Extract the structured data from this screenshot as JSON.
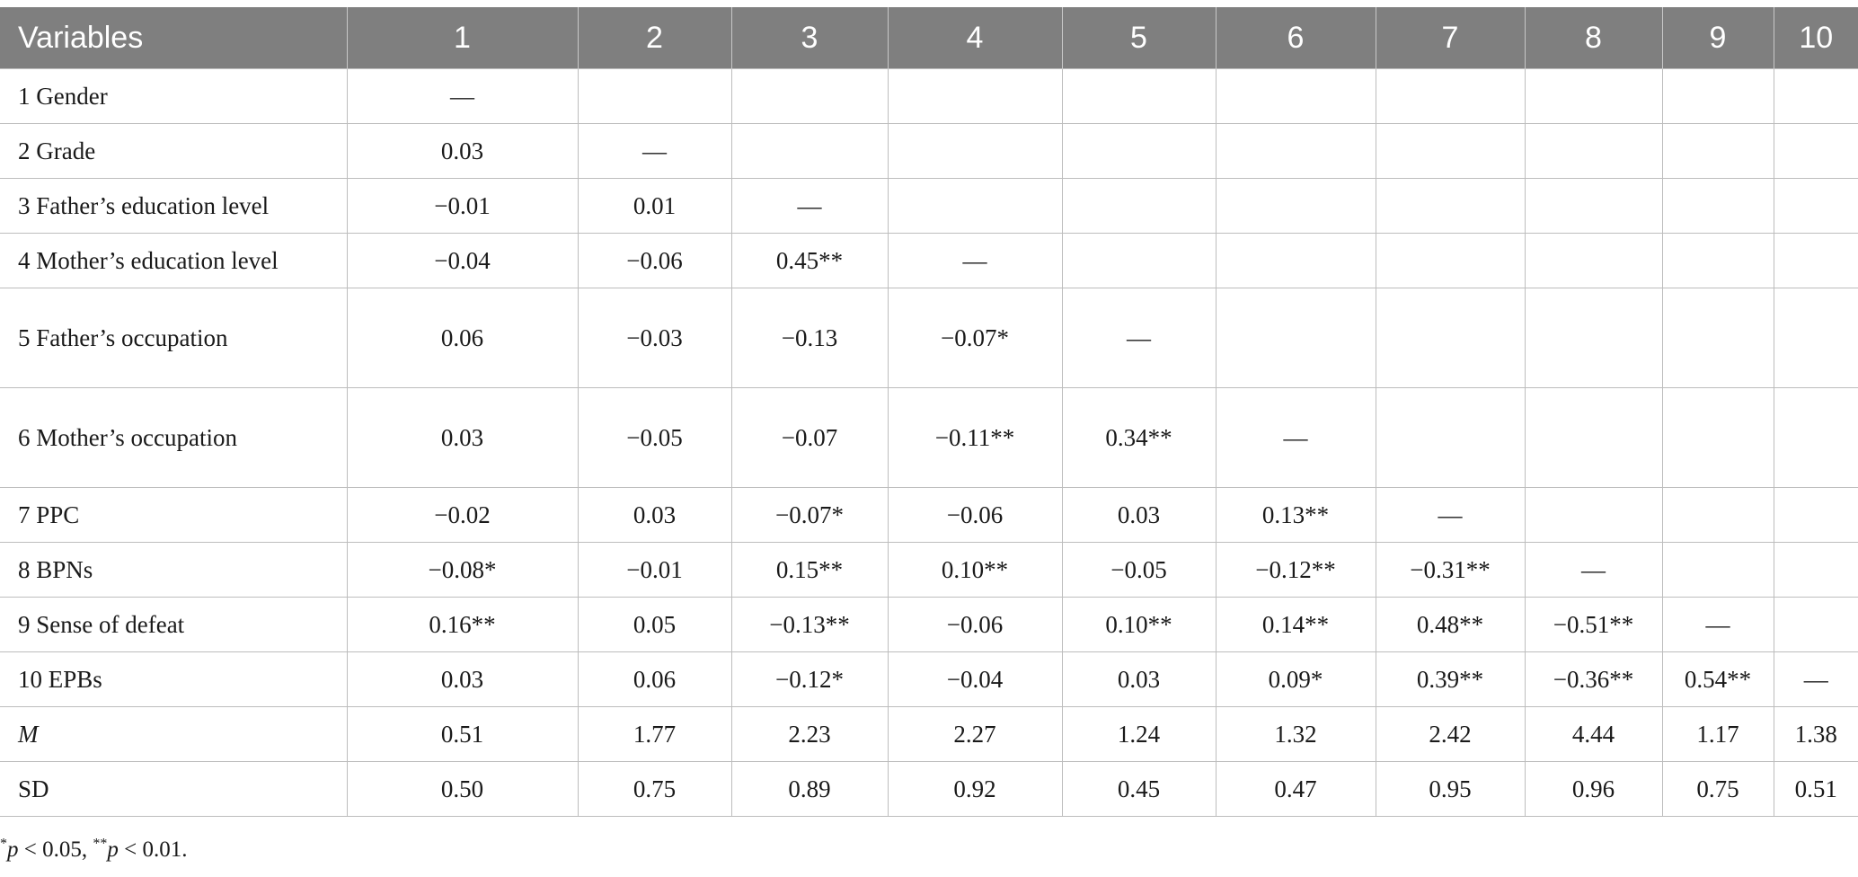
{
  "table": {
    "headers": [
      "Variables",
      "1",
      "2",
      "3",
      "4",
      "5",
      "6",
      "7",
      "8",
      "9",
      "10"
    ],
    "rows": [
      {
        "label": "1 Gender",
        "cells": [
          "—",
          "",
          "",
          "",
          "",
          "",
          "",
          "",
          "",
          ""
        ]
      },
      {
        "label": "2 Grade",
        "cells": [
          "0.03",
          "—",
          "",
          "",
          "",
          "",
          "",
          "",
          "",
          ""
        ]
      },
      {
        "label": "3 Father’s education level",
        "cells": [
          "−0.01",
          "0.01",
          "—",
          "",
          "",
          "",
          "",
          "",
          "",
          ""
        ]
      },
      {
        "label": "4 Mother’s education level",
        "cells": [
          "−0.04",
          "−0.06",
          "0.45**",
          "—",
          "",
          "",
          "",
          "",
          "",
          ""
        ]
      },
      {
        "label": "5 Father’s occupation",
        "cells": [
          "0.06",
          "−0.03",
          "−0.13",
          "−0.07*",
          "—",
          "",
          "",
          "",
          "",
          ""
        ]
      },
      {
        "label": "6 Mother’s occupation",
        "cells": [
          "0.03",
          "−0.05",
          "−0.07",
          "−0.11**",
          "0.34**",
          "—",
          "",
          "",
          "",
          ""
        ]
      },
      {
        "label": "7 PPC",
        "cells": [
          "−0.02",
          "0.03",
          "−0.07*",
          "−0.06",
          "0.03",
          "0.13**",
          "—",
          "",
          "",
          ""
        ]
      },
      {
        "label": "8 BPNs",
        "cells": [
          "−0.08*",
          "−0.01",
          "0.15**",
          "0.10**",
          "−0.05",
          "−0.12**",
          "−0.31**",
          "—",
          "",
          ""
        ]
      },
      {
        "label": "9 Sense of defeat",
        "cells": [
          "0.16**",
          "0.05",
          "−0.13**",
          "−0.06",
          "0.10**",
          "0.14**",
          "0.48**",
          "−0.51**",
          "—",
          ""
        ]
      },
      {
        "label": "10 EPBs",
        "cells": [
          "0.03",
          "0.06",
          "−0.12*",
          "−0.04",
          "0.03",
          "0.09*",
          "0.39**",
          "−0.36**",
          "0.54**",
          "—"
        ]
      },
      {
        "label": "M",
        "cells": [
          "0.51",
          "1.77",
          "2.23",
          "2.27",
          "1.24",
          "1.32",
          "2.42",
          "4.44",
          "1.17",
          "1.38"
        ]
      },
      {
        "label": "SD",
        "cells": [
          "0.50",
          "0.75",
          "0.89",
          "0.92",
          "0.45",
          "0.47",
          "0.95",
          "0.96",
          "0.75",
          "0.51"
        ]
      }
    ]
  },
  "footnote": {
    "star1": "*",
    "p1": "p",
    "text1": " < 0.05, ",
    "star2": "**",
    "p2": "p",
    "text2": " < 0.01."
  }
}
